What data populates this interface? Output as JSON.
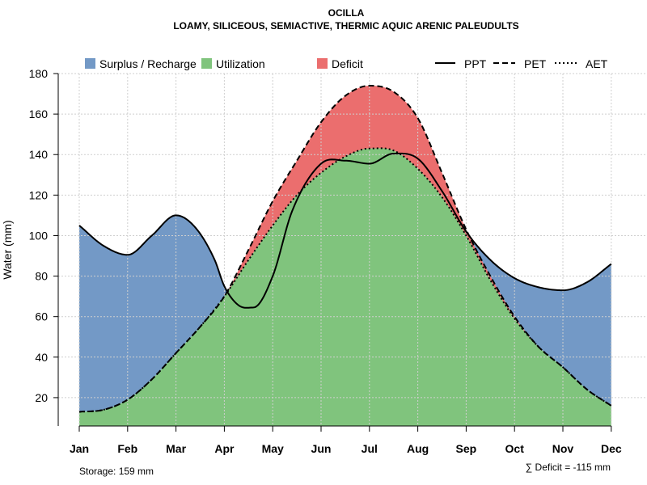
{
  "chart_data": {
    "type": "area",
    "title": "OCILLA",
    "subtitle": "LOAMY, SILICEOUS, SEMIACTIVE, THERMIC AQUIC ARENIC PALEUDULTS",
    "xlabel": "",
    "ylabel": "Water (mm)",
    "ylim": [
      6,
      180
    ],
    "yticks": [
      20,
      40,
      60,
      80,
      100,
      120,
      140,
      160,
      180
    ],
    "categories": [
      "Jan",
      "Feb",
      "Mar",
      "Apr",
      "May",
      "Jun",
      "Jul",
      "Aug",
      "Sep",
      "Oct",
      "Nov",
      "Dec"
    ],
    "grid": true,
    "series": [
      {
        "name": "PPT",
        "style": "solid",
        "x": [
          1,
          1.5,
          2,
          2.5,
          3,
          3.4,
          3.8,
          4,
          4.3,
          4.6,
          5,
          5.4,
          6,
          6.5,
          7,
          7.5,
          8,
          8.5,
          9,
          9.5,
          10,
          10.5,
          11,
          11.5,
          12
        ],
        "values": [
          105,
          95,
          90.5,
          100,
          110,
          104,
          88,
          75,
          65.5,
          64.5,
          80,
          112,
          135.5,
          137,
          135.5,
          140.5,
          138,
          122,
          102,
          88,
          79,
          74.5,
          73,
          77,
          86
        ]
      },
      {
        "name": "PET",
        "style": "dashed",
        "x": [
          1,
          1.5,
          2,
          2.5,
          3,
          3.5,
          4,
          4.5,
          5,
          5.5,
          6,
          6.5,
          7,
          7.5,
          8,
          8.5,
          9,
          9.5,
          10,
          10.5,
          11,
          11.5,
          12
        ],
        "values": [
          13,
          14,
          19,
          29,
          42,
          55,
          70,
          93,
          117,
          137,
          156,
          169,
          174,
          171,
          158,
          131,
          103,
          80,
          60,
          45,
          35,
          24,
          16
        ]
      },
      {
        "name": "AET",
        "style": "dotted",
        "x": [
          1,
          1.5,
          2,
          2.5,
          3,
          3.5,
          4,
          4.5,
          5,
          5.5,
          6,
          6.5,
          7,
          7.5,
          8,
          8.5,
          9,
          9.5,
          10,
          10.5,
          11,
          11.5,
          12
        ],
        "values": [
          13,
          14,
          19,
          29,
          42,
          55,
          70,
          88,
          105,
          120,
          131,
          139,
          143,
          142,
          133,
          119,
          100,
          78,
          59,
          45,
          35,
          24,
          16
        ]
      }
    ],
    "areas": [
      {
        "name": "Surplus / Recharge",
        "color": "#7399C6",
        "between": [
          "PPT",
          "PET"
        ],
        "where": "PPT above PET"
      },
      {
        "name": "Utilization",
        "color": "#80C47D",
        "between": [
          "AET",
          "baseline"
        ]
      },
      {
        "name": "Deficit",
        "color": "#EB6E6E",
        "between": [
          "PET",
          "AET"
        ]
      }
    ],
    "storage": {
      "label": "Storage: 159 mm",
      "value": 159
    },
    "deficit_total": {
      "label": "∑ Deficit = -115 mm",
      "value": -115
    }
  }
}
